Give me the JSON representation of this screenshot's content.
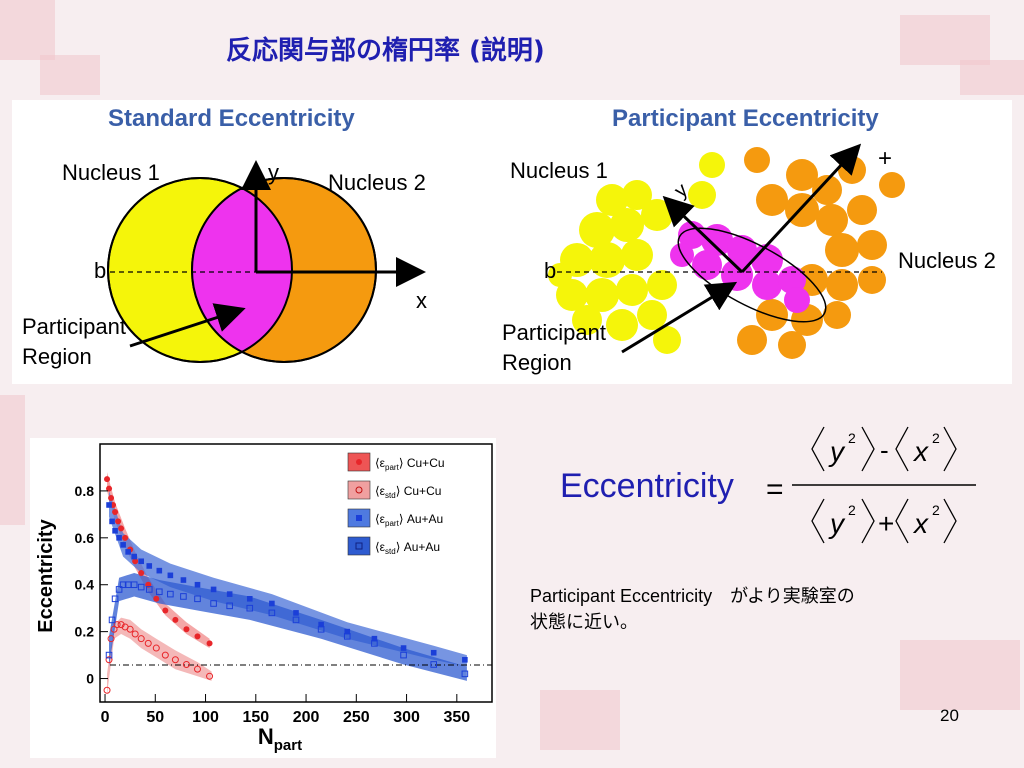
{
  "slide": {
    "title": "反応関与部の楕円率 (説明)",
    "page_number": "20"
  },
  "diagram": {
    "left_title": "Standard Eccentricity",
    "right_title": "Participant Eccentricity",
    "nucleus1": "Nucleus 1",
    "nucleus2": "Nucleus 2",
    "axis_y": "y",
    "axis_x": "x",
    "impact_b": "b",
    "participant_line1": "Participant",
    "participant_line2": "Region",
    "rotated_y": "y",
    "rotated_x": "+",
    "colors": {
      "nucleus1": "#f5f50a",
      "nucleus2": "#f59a0f",
      "overlap": "#ee33ee",
      "title": "#3a5fa8"
    }
  },
  "formula": {
    "lhs": "Eccentricity",
    "equals": "=",
    "numerator_minus": "-",
    "denominator_plus": "+",
    "var_y": "y",
    "var_x": "x",
    "exponent": "2"
  },
  "note": {
    "line1": "Participant Eccentricity　がより実験室の",
    "line2": "状態に近い。"
  },
  "chart_data": {
    "type": "scatter",
    "xlabel_main": "N",
    "xlabel_sub": "part",
    "ylabel": "Eccentricity",
    "xlim": [
      -5,
      385
    ],
    "ylim": [
      -0.1,
      1.0
    ],
    "x_ticks": [
      0,
      50,
      100,
      150,
      200,
      250,
      300,
      350
    ],
    "y_ticks": [
      0,
      0.2,
      0.4,
      0.6,
      0.8
    ],
    "y_tick_labels": [
      "0",
      "0.2",
      "0.4",
      "0.6",
      "0.8"
    ],
    "legend_position": "top-right",
    "series": [
      {
        "name_pre": "ε",
        "name_sub": "part",
        "name_post": "Cu+Cu",
        "color": "#e8262a",
        "marker": "filled-circle",
        "x": [
          2,
          4,
          6,
          8,
          10,
          13,
          16,
          20,
          25,
          30,
          36,
          43,
          51,
          60,
          70,
          81,
          92,
          104
        ],
        "y": [
          0.85,
          0.81,
          0.77,
          0.74,
          0.71,
          0.67,
          0.64,
          0.6,
          0.55,
          0.5,
          0.45,
          0.4,
          0.34,
          0.29,
          0.25,
          0.21,
          0.18,
          0.15
        ],
        "band": {
          "x": [
            2,
            10,
            20,
            30,
            43,
            60,
            81,
            104
          ],
          "lo": [
            0.8,
            0.67,
            0.56,
            0.47,
            0.37,
            0.27,
            0.19,
            0.13
          ],
          "hi": [
            0.88,
            0.75,
            0.64,
            0.54,
            0.43,
            0.32,
            0.24,
            0.17
          ]
        }
      },
      {
        "name_pre": "ε",
        "name_sub": "std",
        "name_post": "Cu+Cu",
        "color": "#e8262a",
        "marker": "open-circle",
        "x": [
          2,
          4,
          6,
          9,
          12,
          16,
          20,
          25,
          30,
          36,
          43,
          51,
          60,
          70,
          81,
          92,
          104
        ],
        "y": [
          -0.05,
          0.08,
          0.17,
          0.21,
          0.23,
          0.23,
          0.22,
          0.21,
          0.19,
          0.17,
          0.15,
          0.13,
          0.1,
          0.08,
          0.06,
          0.04,
          0.01
        ],
        "band": {
          "x": [
            2,
            9,
            16,
            25,
            36,
            51,
            70,
            92,
            106
          ],
          "lo": [
            -0.07,
            0.17,
            0.19,
            0.17,
            0.13,
            0.09,
            0.04,
            0.01,
            -0.01
          ],
          "hi": [
            0.02,
            0.23,
            0.26,
            0.25,
            0.21,
            0.17,
            0.12,
            0.07,
            0.03
          ]
        }
      },
      {
        "name_pre": "ε",
        "name_sub": "part",
        "name_post": "Au+Au",
        "color": "#1b3fd8",
        "marker": "filled-square",
        "x": [
          4,
          7,
          10,
          14,
          18,
          23,
          29,
          36,
          44,
          54,
          65,
          78,
          92,
          108,
          124,
          144,
          166,
          190,
          215,
          241,
          268,
          297,
          327,
          358
        ],
        "y": [
          0.74,
          0.67,
          0.63,
          0.6,
          0.57,
          0.54,
          0.52,
          0.5,
          0.48,
          0.46,
          0.44,
          0.42,
          0.4,
          0.38,
          0.36,
          0.34,
          0.32,
          0.28,
          0.23,
          0.2,
          0.17,
          0.13,
          0.11,
          0.08
        ],
        "band": {
          "x": [
            4,
            18,
            36,
            65,
            108,
            166,
            241,
            327,
            360
          ],
          "lo": [
            0.69,
            0.52,
            0.45,
            0.39,
            0.33,
            0.27,
            0.17,
            0.08,
            0.05
          ],
          "hi": [
            0.8,
            0.62,
            0.55,
            0.49,
            0.43,
            0.36,
            0.24,
            0.14,
            0.1
          ]
        }
      },
      {
        "name_pre": "ε",
        "name_sub": "std",
        "name_post": "Au+Au",
        "color": "#1b3fd8",
        "marker": "open-square",
        "x": [
          4,
          7,
          10,
          14,
          18,
          23,
          29,
          36,
          44,
          54,
          65,
          78,
          92,
          108,
          124,
          144,
          166,
          190,
          215,
          241,
          268,
          297,
          327,
          358
        ],
        "y": [
          0.1,
          0.25,
          0.34,
          0.38,
          0.4,
          0.4,
          0.4,
          0.39,
          0.38,
          0.37,
          0.36,
          0.35,
          0.34,
          0.32,
          0.31,
          0.3,
          0.28,
          0.25,
          0.21,
          0.18,
          0.15,
          0.1,
          0.06,
          0.02
        ],
        "band": {
          "x": [
            4,
            14,
            29,
            54,
            92,
            144,
            215,
            297,
            360
          ],
          "lo": [
            0.05,
            0.33,
            0.35,
            0.32,
            0.29,
            0.25,
            0.17,
            0.06,
            -0.01
          ],
          "hi": [
            0.18,
            0.43,
            0.45,
            0.42,
            0.39,
            0.35,
            0.25,
            0.13,
            0.05
          ]
        }
      }
    ]
  }
}
